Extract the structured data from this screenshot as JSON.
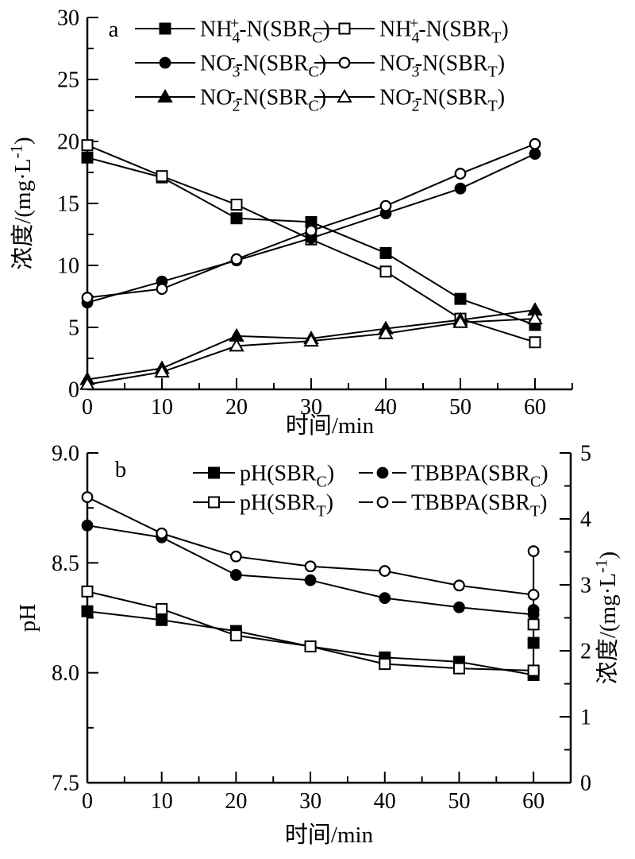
{
  "figure": {
    "background": "#ffffff",
    "ink_color": "#000000"
  },
  "chart_data": [
    {
      "id": "panel_a",
      "type": "line",
      "panel_label": "a",
      "xlabel": "时间/min",
      "ylabel": "浓度/(mg·L^{-1})",
      "xlim": [
        0,
        65
      ],
      "ylim": [
        0,
        30
      ],
      "x_major_ticks": [
        0,
        10,
        20,
        30,
        40,
        50,
        60
      ],
      "x_minor_step": 5,
      "y_major_ticks": [
        0,
        5,
        10,
        15,
        20,
        25,
        30
      ],
      "y_minor_step": 2.5,
      "grid": "off",
      "legend_position": "top-inside, 3 rows x 2 columns, no frame",
      "x": [
        0,
        10,
        20,
        30,
        40,
        50,
        60
      ],
      "series": [
        {
          "name": "NH_{4}^{+}-N(SBR_{C})",
          "marker": "square",
          "fill": "filled",
          "values": [
            18.7,
            17.1,
            13.8,
            13.5,
            11.0,
            7.3,
            5.2
          ]
        },
        {
          "name": "NH_{4}^{+}-N(SBR_{T})",
          "marker": "square",
          "fill": "open",
          "values": [
            19.7,
            17.2,
            14.9,
            12.1,
            9.5,
            5.7,
            3.8
          ]
        },
        {
          "name": "NO_{3}^{-}-N(SBR_{C})",
          "marker": "circle",
          "fill": "filled",
          "values": [
            7.0,
            8.7,
            10.4,
            12.2,
            14.2,
            16.2,
            19.0
          ]
        },
        {
          "name": "NO_{3}^{-}-N(SBR_{T})",
          "marker": "circle",
          "fill": "open",
          "values": [
            7.4,
            8.1,
            10.5,
            12.8,
            14.8,
            17.4,
            19.8
          ]
        },
        {
          "name": "NO_{2}^{-}-N(SBR_{C})",
          "marker": "triangle",
          "fill": "filled",
          "values": [
            0.8,
            1.7,
            4.3,
            4.1,
            4.9,
            5.6,
            6.4
          ]
        },
        {
          "name": "NO_{2}^{-}-N(SBR_{T})",
          "marker": "triangle",
          "fill": "open",
          "values": [
            0.4,
            1.4,
            3.5,
            3.9,
            4.5,
            5.4,
            5.7
          ]
        }
      ]
    },
    {
      "id": "panel_b",
      "type": "line",
      "panel_label": "b",
      "xlabel": "时间/min",
      "ylabel_left": "pH",
      "ylabel_right": "浓度/(mg·L^{-1})",
      "xlim": [
        0,
        65
      ],
      "ylim_left": [
        7.5,
        9.0
      ],
      "ylim_right": [
        0,
        5
      ],
      "x_major_ticks": [
        0,
        10,
        20,
        30,
        40,
        50,
        60
      ],
      "x_minor_step": 5,
      "y_left_major_ticks": [
        "7.5",
        "8.0",
        "8.5",
        "9.0"
      ],
      "y_left_minor_step": 0.25,
      "y_right_major_ticks": [
        0,
        1,
        2,
        3,
        4,
        5
      ],
      "y_right_minor_step": 0.5,
      "grid": "off",
      "legend_position": "top-inside, 2 rows x 2 columns, no frame",
      "x": [
        0,
        10,
        20,
        30,
        40,
        50,
        60
      ],
      "series": [
        {
          "name": "pH(SBR_{C})",
          "axis": "left",
          "marker": "square",
          "fill": "filled",
          "legend_dash": false,
          "values": [
            8.28,
            8.24,
            8.19,
            8.12,
            8.07,
            8.05,
            7.99
          ]
        },
        {
          "name": "pH(SBR_{T})",
          "axis": "left",
          "marker": "square",
          "fill": "open",
          "legend_dash": false,
          "values": [
            8.37,
            8.29,
            8.17,
            8.12,
            8.04,
            8.02,
            8.01
          ]
        },
        {
          "name": "TBBPA(SBR_{C})",
          "axis": "right",
          "marker": "circle",
          "fill": "filled",
          "legend_dash": true,
          "values": [
            3.9,
            3.72,
            3.15,
            3.07,
            2.8,
            2.66,
            2.55
          ]
        },
        {
          "name": "TBBPA(SBR_{T})",
          "axis": "right",
          "marker": "circle",
          "fill": "open",
          "legend_dash": true,
          "values": [
            4.33,
            3.78,
            3.43,
            3.28,
            3.21,
            2.99,
            2.85
          ]
        }
      ],
      "extra_points_at_x60": {
        "note": "vertical connector line at x=60 linking final markers",
        "x": 60,
        "line_span_right_axis": [
          1.63,
          3.51
        ],
        "markers": [
          {
            "marker": "circle",
            "fill": "open",
            "axis": "right",
            "y": 3.51
          },
          {
            "marker": "circle",
            "fill": "filled",
            "axis": "right",
            "y": 2.62
          },
          {
            "marker": "square",
            "fill": "open",
            "axis": "right",
            "y": 2.4
          },
          {
            "marker": "square",
            "fill": "filled",
            "axis": "right",
            "y": 2.12
          }
        ]
      }
    }
  ]
}
